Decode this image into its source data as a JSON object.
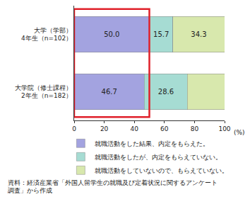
{
  "chart_data": {
    "type": "bar",
    "orientation": "horizontal",
    "stacked": true,
    "data_labels": true,
    "grid": false,
    "legend": "bottom",
    "categories": [
      "大学（学部）\n4年生（n=102）",
      "大学院（修士課程）\n2年生（n=182）"
    ],
    "series": [
      {
        "name": "就職活動をした結果、内定をもらえた。",
        "color": "#a3a3e0",
        "values": [
          50.0,
          46.7
        ],
        "value_labels": [
          "50.0",
          "46.7"
        ]
      },
      {
        "name": "就職活動をしたが、内定をもらえていない。",
        "color": "#a6dcd3",
        "values": [
          15.7,
          28.6
        ]
      },
      {
        "name": "就職活動をしていないので、もらえていない。",
        "color": "#d8e8ad",
        "values": [
          34.3,
          24.7
        ]
      }
    ],
    "xlim": [
      0,
      100
    ],
    "xticks": [
      0,
      20,
      40,
      60,
      80,
      100
    ],
    "x_label": "(%)",
    "source": "資料：経済産業省「外国人留学生の就職及び定着状況に関するアンケート\n調査」から作成"
  }
}
